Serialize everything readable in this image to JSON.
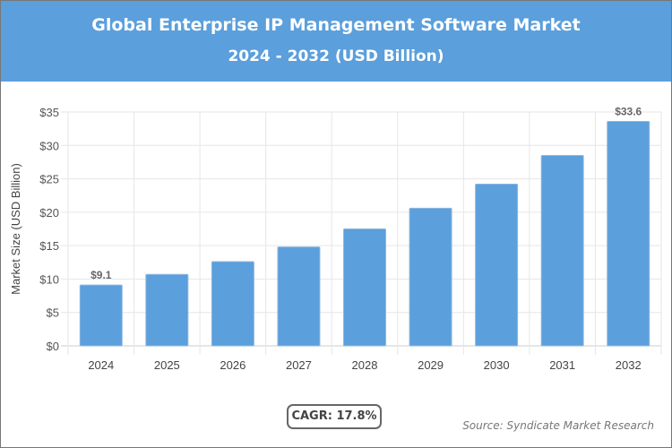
{
  "header": {
    "title": "Global Enterprise IP Management Software Market",
    "subtitle": "2024 - 2032 (USD Billion)",
    "color": "#5b9fdc"
  },
  "chart_data": {
    "type": "bar",
    "title": "Global Enterprise IP Management Software Market",
    "subtitle": "2024 - 2032 (USD Billion)",
    "xlabel": "",
    "ylabel": "Market Size (USD Billion)",
    "categories": [
      "2024",
      "2025",
      "2026",
      "2027",
      "2028",
      "2029",
      "2030",
      "2031",
      "2032"
    ],
    "values": [
      9.1,
      10.7,
      12.6,
      14.8,
      17.5,
      20.6,
      24.2,
      28.5,
      33.6
    ],
    "data_labels": {
      "0": "$9.1",
      "8": "$33.6"
    },
    "ylim": [
      0,
      35
    ],
    "yticks": [
      0,
      5,
      10,
      15,
      20,
      25,
      30,
      35
    ],
    "ytick_labels": [
      "$0",
      "$5",
      "$10",
      "$15",
      "$20",
      "$25",
      "$30",
      "$35"
    ],
    "grid": true,
    "bar_color": "#5b9fdc"
  },
  "cagr": "CAGR: 17.8%",
  "source": "Source: Syndicate Market Research"
}
